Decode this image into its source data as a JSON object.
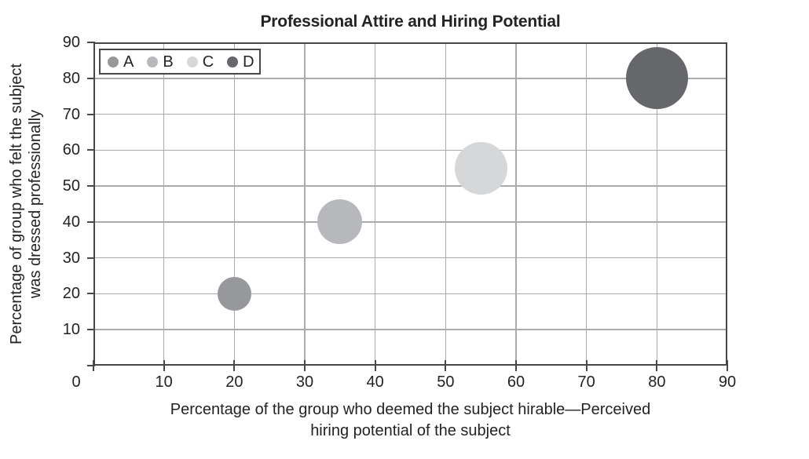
{
  "chart_data": {
    "type": "bubble",
    "title": "Professional Attire and Hiring Potential",
    "xlabel": "Percentage of the group who deemed the subject hirable—Perceived hiring potential of the subject",
    "xlabel_lines": [
      "Percentage of the group who deemed the subject hirable—Perceived",
      "hiring potential of the subject"
    ],
    "ylabel": "Percentage of group who felt the subject was dressed professionally",
    "ylabel_lines": [
      "Percentage of group who felt the subject",
      "was dressed professionally"
    ],
    "xlim": [
      0,
      90
    ],
    "ylim": [
      0,
      90
    ],
    "xticks": [
      0,
      10,
      20,
      30,
      40,
      50,
      60,
      70,
      80,
      90
    ],
    "yticks": [
      0,
      10,
      20,
      30,
      40,
      50,
      60,
      70,
      80,
      90
    ],
    "ytick_labels": [
      10,
      20,
      30,
      40,
      50,
      60,
      70,
      80,
      90
    ],
    "grid": true,
    "grid_step": 10,
    "legend_position": "top-left-inside",
    "series": [
      {
        "name": "A",
        "x": 20,
        "y": 20,
        "bubble_radius_px": 21.5,
        "color": "#97989b"
      },
      {
        "name": "B",
        "x": 35,
        "y": 40,
        "bubble_radius_px": 28.5,
        "color": "#b7b8bb"
      },
      {
        "name": "C",
        "x": 55,
        "y": 55,
        "bubble_radius_px": 33.5,
        "color": "#d6d7d8"
      },
      {
        "name": "D",
        "x": 80,
        "y": 80,
        "bubble_radius_px": 39.5,
        "color": "#66676a"
      }
    ]
  },
  "colors": {
    "background": "#ffffff",
    "axis": "#47484b",
    "grid": "#a9abae",
    "text": "#232325",
    "legend_border": "#47484b"
  }
}
